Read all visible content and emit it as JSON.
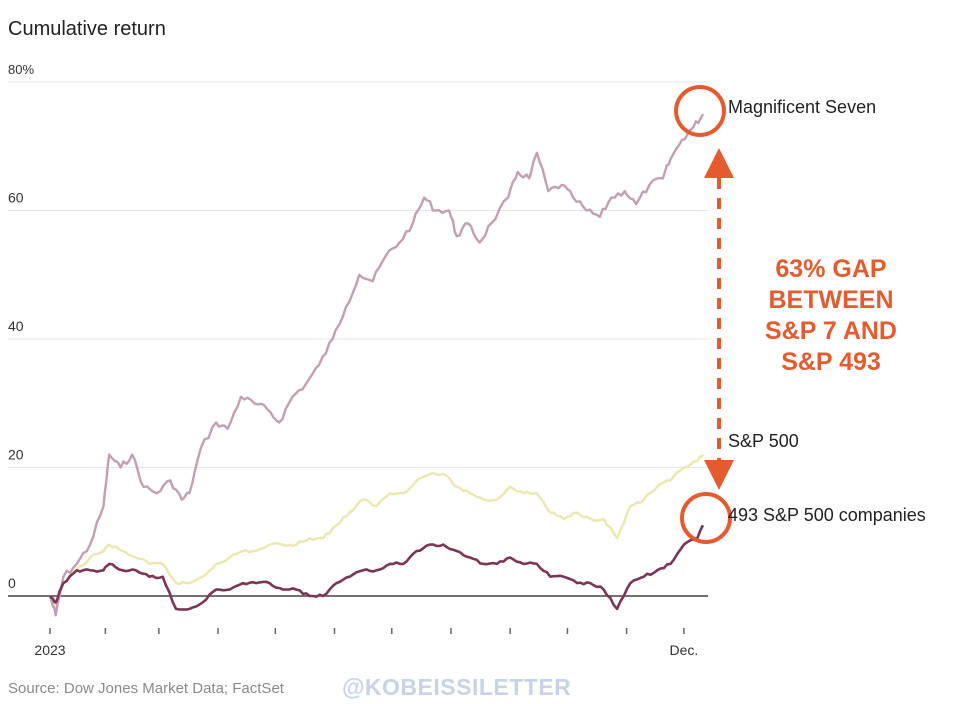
{
  "header": {
    "title": "Cumulative return"
  },
  "footer": {
    "source": "Source: Dow Jones Market Data; FactSet",
    "watermark": "@KOBEISSILETTER"
  },
  "annotation": {
    "text_lines": [
      "63% GAP",
      "BETWEEN",
      "S&P 7 AND",
      "S&P 493"
    ]
  },
  "colors": {
    "mag7": "#c39fb3",
    "sp500": "#ece7b0",
    "sp493": "#7c3558",
    "accent": "#e35b2e",
    "grid": "#e6e6e6",
    "baseline": "#444444"
  },
  "chart_data": {
    "type": "line",
    "title": "Cumulative return",
    "x_start": "2023-01-03",
    "x_end": "2023-12-11",
    "x_tick_labels": [
      {
        "date": "2023-01-03",
        "label": "2023"
      },
      {
        "date": "2023-12-01",
        "label": "Dec."
      }
    ],
    "y_ticks": [
      0,
      20,
      40,
      60,
      80
    ],
    "y_tick_labels": [
      "0",
      "20",
      "40",
      "60",
      "80%"
    ],
    "ylim": [
      -5,
      82
    ],
    "grid": true,
    "series": [
      {
        "name": "Magnificent Seven",
        "color": "#c39fb3",
        "points": [
          [
            "2023-01-03",
            0
          ],
          [
            "2023-01-06",
            -3
          ],
          [
            "2023-01-10",
            3
          ],
          [
            "2023-01-17",
            5
          ],
          [
            "2023-01-24",
            8
          ],
          [
            "2023-01-31",
            14
          ],
          [
            "2023-02-03",
            22
          ],
          [
            "2023-02-09",
            20
          ],
          [
            "2023-02-15",
            22
          ],
          [
            "2023-02-21",
            17
          ],
          [
            "2023-02-28",
            16
          ],
          [
            "2023-03-07",
            18
          ],
          [
            "2023-03-13",
            15
          ],
          [
            "2023-03-17",
            16
          ],
          [
            "2023-03-23",
            23
          ],
          [
            "2023-03-31",
            27
          ],
          [
            "2023-04-06",
            26
          ],
          [
            "2023-04-13",
            31
          ],
          [
            "2023-04-20",
            30
          ],
          [
            "2023-04-27",
            29
          ],
          [
            "2023-05-03",
            27
          ],
          [
            "2023-05-10",
            31
          ],
          [
            "2023-05-17",
            33
          ],
          [
            "2023-05-24",
            36
          ],
          [
            "2023-05-31",
            40
          ],
          [
            "2023-06-07",
            45
          ],
          [
            "2023-06-14",
            50
          ],
          [
            "2023-06-21",
            49
          ],
          [
            "2023-06-28",
            53
          ],
          [
            "2023-07-05",
            55
          ],
          [
            "2023-07-12",
            58
          ],
          [
            "2023-07-18",
            62
          ],
          [
            "2023-07-24",
            60
          ],
          [
            "2023-07-31",
            60
          ],
          [
            "2023-08-04",
            56
          ],
          [
            "2023-08-10",
            58
          ],
          [
            "2023-08-16",
            55
          ],
          [
            "2023-08-22",
            58
          ],
          [
            "2023-08-31",
            62
          ],
          [
            "2023-09-05",
            66
          ],
          [
            "2023-09-11",
            65
          ],
          [
            "2023-09-15",
            69
          ],
          [
            "2023-09-21",
            63
          ],
          [
            "2023-09-28",
            64
          ],
          [
            "2023-10-04",
            62
          ],
          [
            "2023-10-11",
            60
          ],
          [
            "2023-10-18",
            59
          ],
          [
            "2023-10-24",
            62
          ],
          [
            "2023-10-31",
            63
          ],
          [
            "2023-11-06",
            61
          ],
          [
            "2023-11-13",
            64
          ],
          [
            "2023-11-20",
            65
          ],
          [
            "2023-11-24",
            68
          ],
          [
            "2023-11-30",
            71
          ],
          [
            "2023-12-06",
            73
          ],
          [
            "2023-12-11",
            75
          ]
        ]
      },
      {
        "name": "S&P 500",
        "color": "#ece7b0",
        "points": [
          [
            "2023-01-03",
            0
          ],
          [
            "2023-01-06",
            -2
          ],
          [
            "2023-01-10",
            2
          ],
          [
            "2023-01-17",
            4
          ],
          [
            "2023-01-24",
            6
          ],
          [
            "2023-01-31",
            7
          ],
          [
            "2023-02-03",
            8
          ],
          [
            "2023-02-10",
            7
          ],
          [
            "2023-02-17",
            6
          ],
          [
            "2023-02-24",
            5
          ],
          [
            "2023-03-03",
            5
          ],
          [
            "2023-03-10",
            2
          ],
          [
            "2023-03-17",
            2
          ],
          [
            "2023-03-24",
            3
          ],
          [
            "2023-03-31",
            5
          ],
          [
            "2023-04-07",
            6
          ],
          [
            "2023-04-14",
            7
          ],
          [
            "2023-04-21",
            7
          ],
          [
            "2023-04-28",
            8
          ],
          [
            "2023-05-05",
            8
          ],
          [
            "2023-05-12",
            8
          ],
          [
            "2023-05-19",
            9
          ],
          [
            "2023-05-26",
            9
          ],
          [
            "2023-06-02",
            11
          ],
          [
            "2023-06-09",
            13
          ],
          [
            "2023-06-16",
            15
          ],
          [
            "2023-06-23",
            14
          ],
          [
            "2023-06-30",
            16
          ],
          [
            "2023-07-07",
            16
          ],
          [
            "2023-07-14",
            18
          ],
          [
            "2023-07-21",
            19
          ],
          [
            "2023-07-28",
            19
          ],
          [
            "2023-08-04",
            17
          ],
          [
            "2023-08-11",
            16
          ],
          [
            "2023-08-18",
            15
          ],
          [
            "2023-08-25",
            15
          ],
          [
            "2023-09-01",
            17
          ],
          [
            "2023-09-08",
            16
          ],
          [
            "2023-09-15",
            16
          ],
          [
            "2023-09-22",
            13
          ],
          [
            "2023-09-29",
            12
          ],
          [
            "2023-10-06",
            13
          ],
          [
            "2023-10-13",
            12
          ],
          [
            "2023-10-20",
            12
          ],
          [
            "2023-10-27",
            9
          ],
          [
            "2023-11-03",
            14
          ],
          [
            "2023-11-10",
            15
          ],
          [
            "2023-11-17",
            17
          ],
          [
            "2023-11-24",
            18
          ],
          [
            "2023-12-01",
            20
          ],
          [
            "2023-12-08",
            21
          ],
          [
            "2023-12-11",
            22
          ]
        ]
      },
      {
        "name": "493 S&P 500 companies",
        "color": "#7c3558",
        "points": [
          [
            "2023-01-03",
            0
          ],
          [
            "2023-01-06",
            -1
          ],
          [
            "2023-01-10",
            2
          ],
          [
            "2023-01-17",
            4
          ],
          [
            "2023-01-24",
            4
          ],
          [
            "2023-01-31",
            4
          ],
          [
            "2023-02-03",
            5
          ],
          [
            "2023-02-10",
            4
          ],
          [
            "2023-02-17",
            4
          ],
          [
            "2023-02-24",
            3
          ],
          [
            "2023-03-03",
            3
          ],
          [
            "2023-03-10",
            -2
          ],
          [
            "2023-03-17",
            -2
          ],
          [
            "2023-03-24",
            -1
          ],
          [
            "2023-03-31",
            1
          ],
          [
            "2023-04-07",
            1
          ],
          [
            "2023-04-14",
            2
          ],
          [
            "2023-04-21",
            2
          ],
          [
            "2023-04-28",
            2
          ],
          [
            "2023-05-05",
            1
          ],
          [
            "2023-05-12",
            1
          ],
          [
            "2023-05-19",
            0
          ],
          [
            "2023-05-26",
            0
          ],
          [
            "2023-06-02",
            2
          ],
          [
            "2023-06-09",
            3
          ],
          [
            "2023-06-16",
            4
          ],
          [
            "2023-06-23",
            4
          ],
          [
            "2023-06-30",
            5
          ],
          [
            "2023-07-07",
            5
          ],
          [
            "2023-07-14",
            7
          ],
          [
            "2023-07-21",
            8
          ],
          [
            "2023-07-28",
            8
          ],
          [
            "2023-08-04",
            7
          ],
          [
            "2023-08-11",
            6
          ],
          [
            "2023-08-18",
            5
          ],
          [
            "2023-08-25",
            5
          ],
          [
            "2023-09-01",
            6
          ],
          [
            "2023-09-08",
            5
          ],
          [
            "2023-09-15",
            5
          ],
          [
            "2023-09-22",
            3
          ],
          [
            "2023-09-29",
            3
          ],
          [
            "2023-10-06",
            2
          ],
          [
            "2023-10-13",
            2
          ],
          [
            "2023-10-20",
            1
          ],
          [
            "2023-10-27",
            -2
          ],
          [
            "2023-11-03",
            2
          ],
          [
            "2023-11-10",
            3
          ],
          [
            "2023-11-17",
            4
          ],
          [
            "2023-11-24",
            5
          ],
          [
            "2023-12-01",
            8
          ],
          [
            "2023-12-08",
            9
          ],
          [
            "2023-12-11",
            11
          ]
        ]
      }
    ]
  }
}
